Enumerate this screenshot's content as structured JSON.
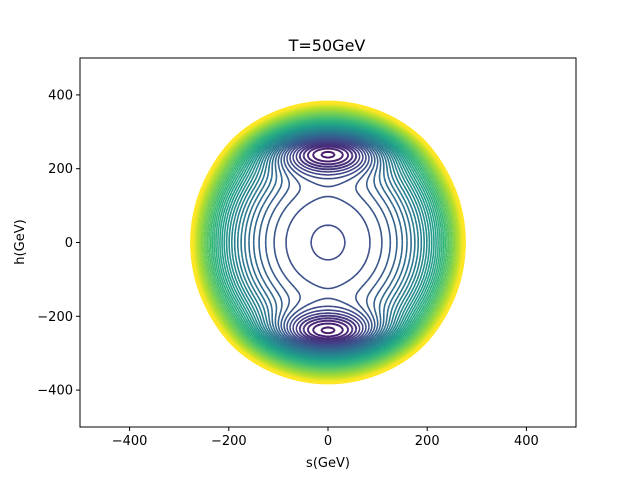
{
  "chart_data": {
    "type": "contour",
    "title": "T=50GeV",
    "xlabel": "s(GeV)",
    "ylabel": "h(GeV)",
    "xlim": [
      -500,
      500
    ],
    "ylim": [
      -500,
      500
    ],
    "xticks": [
      -400,
      -200,
      0,
      200,
      400
    ],
    "yticks": [
      -400,
      -200,
      0,
      200,
      400
    ],
    "xtick_labels": [
      "−400",
      "−200",
      "0",
      "200",
      "400"
    ],
    "ytick_labels": [
      "−400",
      "−200",
      "0",
      "200",
      "400"
    ],
    "colormap": "viridis",
    "grid": false,
    "legend": false,
    "outer_boundary": {
      "s_radius": 275,
      "h_radius": 380
    },
    "minima": [
      {
        "s": 0,
        "h": 250
      },
      {
        "s": 0,
        "h": -245
      },
      {
        "s": 0,
        "h": 0
      }
    ]
  }
}
